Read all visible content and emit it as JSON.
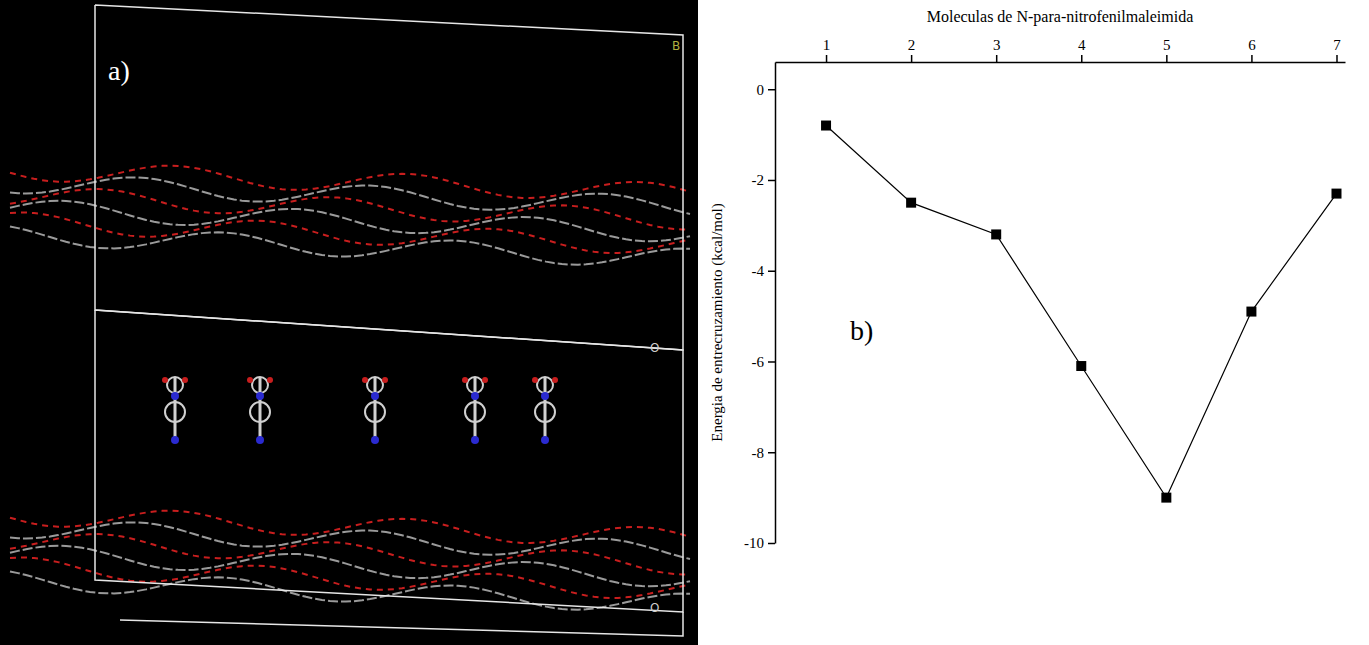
{
  "chart_data": {
    "type": "line",
    "x_label": "Moleculas de N-para-nitrofenilmaleimida",
    "y_label": "Energia de entrecruzamiento (kcal/mol)",
    "annotations": [
      "b)"
    ],
    "x": [
      1,
      2,
      3,
      4,
      5,
      6,
      7
    ],
    "values": [
      -0.8,
      -2.5,
      -3.2,
      -6.1,
      -9.0,
      -4.9,
      -2.3
    ],
    "color": "#000000",
    "marker": "square",
    "line_style": "solid",
    "xlim": [
      0.4,
      7.1
    ],
    "xticks": [
      1,
      2,
      3,
      4,
      5,
      6,
      7
    ],
    "ylim": [
      -10,
      0.6
    ],
    "yticks": [
      0,
      -2,
      -4,
      -6,
      -8,
      -10
    ],
    "grid": false
  },
  "panel_a": {
    "label": "a)",
    "axis_labels": [
      "B",
      "O",
      "O"
    ]
  }
}
